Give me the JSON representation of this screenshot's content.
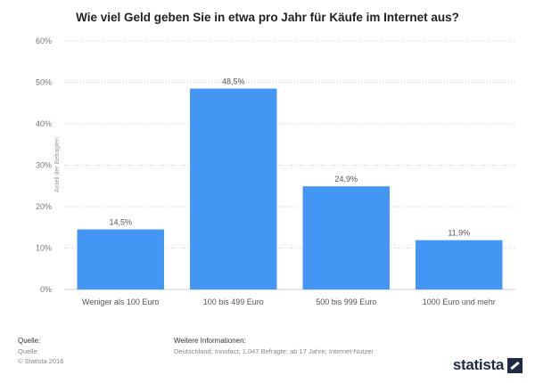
{
  "title": "Wie viel Geld geben Sie in etwa pro Jahr für Käufe im Internet aus?",
  "colors": {
    "bar": "#4396f3",
    "grid": "#cfcfcf"
  },
  "footer": {
    "source_heading": "Quelle:",
    "source_text": "Quelle",
    "copyright": "© Statista 2016",
    "info_heading": "Weitere Informationen:",
    "info_text": "Deutschland; Innofact; 1.047 Befragte; ab 17 Jahre; Internet-Nutzer",
    "logo_text": "statista"
  },
  "chart_data": {
    "type": "bar",
    "title": "Wie viel Geld geben Sie in etwa pro Jahr für Käufe im Internet aus?",
    "ylabel": "Anteil der Befragten",
    "xlabel": "",
    "categories": [
      "Weniger als 100 Euro",
      "100 bis 499 Euro",
      "500 bis 999 Euro",
      "1000 Euro und mehr"
    ],
    "values": [
      14.5,
      48.5,
      24.9,
      11.9
    ],
    "value_labels": [
      "14,5%",
      "48,5%",
      "24,9%",
      "11,9%"
    ],
    "ylim": [
      0,
      60
    ],
    "yticks": [
      0,
      10,
      20,
      30,
      40,
      50,
      60
    ],
    "ytick_labels": [
      "0%",
      "10%",
      "20%",
      "30%",
      "40%",
      "50%",
      "60%"
    ],
    "grid": true,
    "legend": "none"
  }
}
